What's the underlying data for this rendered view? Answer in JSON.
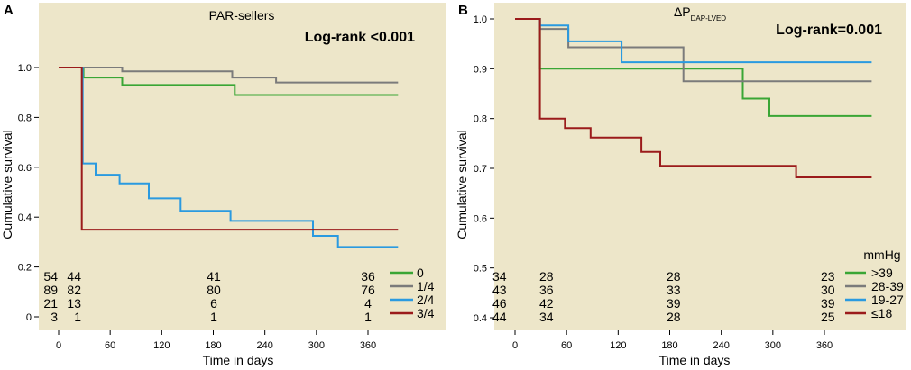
{
  "chart_data": [
    {
      "type": "line",
      "panel": "A",
      "title": "PAR-sellers",
      "stat_text": "Log-rank <0.001",
      "xlabel": "Time in days",
      "ylabel": "Cumulative survival",
      "xlim": [
        0,
        400
      ],
      "ylim": [
        0,
        1.05
      ],
      "xticks": [
        "0",
        "60",
        "120",
        "180",
        "240",
        "300",
        "360"
      ],
      "xtick_values": [
        0,
        60,
        120,
        180,
        240,
        300,
        360
      ],
      "yticks": [
        "0",
        "0.2",
        "0.4",
        "0.6",
        "0.8",
        "1.0"
      ],
      "ytick_values": [
        0,
        0.2,
        0.4,
        0.6,
        0.8,
        1.0
      ],
      "series": [
        {
          "name": "0",
          "color": "#3aa635",
          "points": [
            [
              0,
              1.0
            ],
            [
              29,
              1.0
            ],
            [
              29,
              0.96
            ],
            [
              74,
              0.96
            ],
            [
              74,
              0.93
            ],
            [
              205,
              0.93
            ],
            [
              205,
              0.89
            ],
            [
              395,
              0.89
            ]
          ]
        },
        {
          "name": "1/4",
          "color": "#7b7b7b",
          "points": [
            [
              0,
              1.0
            ],
            [
              74,
              1.0
            ],
            [
              74,
              0.985
            ],
            [
              202,
              0.985
            ],
            [
              202,
              0.96
            ],
            [
              253,
              0.96
            ],
            [
              253,
              0.94
            ],
            [
              395,
              0.94
            ]
          ]
        },
        {
          "name": "2/4",
          "color": "#2a9ae0",
          "points": [
            [
              0,
              1.0
            ],
            [
              28,
              1.0
            ],
            [
              28,
              0.615
            ],
            [
              43,
              0.615
            ],
            [
              43,
              0.57
            ],
            [
              71,
              0.57
            ],
            [
              71,
              0.535
            ],
            [
              105,
              0.535
            ],
            [
              105,
              0.475
            ],
            [
              142,
              0.475
            ],
            [
              142,
              0.425
            ],
            [
              200,
              0.425
            ],
            [
              200,
              0.385
            ],
            [
              296,
              0.385
            ],
            [
              296,
              0.325
            ],
            [
              325,
              0.325
            ],
            [
              325,
              0.28
            ],
            [
              395,
              0.28
            ]
          ]
        },
        {
          "name": "3/4",
          "color": "#9b1b1b",
          "points": [
            [
              0,
              1.0
            ],
            [
              27,
              1.0
            ],
            [
              27,
              0.35
            ],
            [
              395,
              0.35
            ]
          ]
        }
      ],
      "risk_table": {
        "timepoints": [
          0,
          30,
          180,
          360
        ],
        "rows": [
          [
            "54",
            "44",
            "41",
            "36"
          ],
          [
            "89",
            "82",
            "80",
            "76"
          ],
          [
            "21",
            "13",
            "6",
            "4"
          ],
          [
            "3",
            "1",
            "1",
            "1"
          ]
        ]
      },
      "legend": {
        "title": "",
        "entries": [
          "0",
          "1/4",
          "2/4",
          "3/4"
        ]
      }
    },
    {
      "type": "line",
      "panel": "B",
      "title_main": "ΔP",
      "title_sub": "DAP-LVED",
      "stat_text": "Log-rank=0.001",
      "xlabel": "Time in days",
      "ylabel": "Cumulative survival",
      "xlim": [
        0,
        400
      ],
      "ylim": [
        0.37,
        1.02
      ],
      "xticks": [
        "0",
        "60",
        "120",
        "180",
        "240",
        "300",
        "360"
      ],
      "xtick_values": [
        0,
        60,
        120,
        180,
        240,
        300,
        360
      ],
      "yticks": [
        "0.4",
        "0.5",
        "0.6",
        "0.7",
        "0.8",
        "0.9",
        "1.0"
      ],
      "ytick_values": [
        0.4,
        0.5,
        0.6,
        0.7,
        0.8,
        0.9,
        1.0
      ],
      "series": [
        {
          "name": ">39",
          "color": "#3aa635",
          "points": [
            [
              0,
              1.0
            ],
            [
              29,
              1.0
            ],
            [
              29,
              0.9
            ],
            [
              265,
              0.9
            ],
            [
              265,
              0.84
            ],
            [
              296,
              0.84
            ],
            [
              296,
              0.805
            ],
            [
              415,
              0.805
            ]
          ]
        },
        {
          "name": "28-39",
          "color": "#7b7b7b",
          "points": [
            [
              0,
              1.0
            ],
            [
              29,
              1.0
            ],
            [
              29,
              0.98
            ],
            [
              62,
              0.98
            ],
            [
              62,
              0.943
            ],
            [
              196,
              0.943
            ],
            [
              196,
              0.875
            ],
            [
              415,
              0.875
            ]
          ]
        },
        {
          "name": "19-27",
          "color": "#2a9ae0",
          "points": [
            [
              0,
              1.0
            ],
            [
              29,
              1.0
            ],
            [
              29,
              0.987
            ],
            [
              62,
              0.987
            ],
            [
              62,
              0.955
            ],
            [
              124,
              0.955
            ],
            [
              124,
              0.913
            ],
            [
              415,
              0.913
            ]
          ]
        },
        {
          "name": "≤18",
          "color": "#9b1b1b",
          "points": [
            [
              0,
              1.0
            ],
            [
              29,
              1.0
            ],
            [
              29,
              0.8
            ],
            [
              58,
              0.8
            ],
            [
              58,
              0.781
            ],
            [
              88,
              0.781
            ],
            [
              88,
              0.762
            ],
            [
              147,
              0.762
            ],
            [
              147,
              0.733
            ],
            [
              169,
              0.733
            ],
            [
              169,
              0.705
            ],
            [
              327,
              0.705
            ],
            [
              327,
              0.682
            ],
            [
              415,
              0.682
            ]
          ]
        }
      ],
      "risk_table": {
        "timepoints": [
          0,
          30,
          180,
          360
        ],
        "rows": [
          [
            "34",
            "28",
            "28",
            "23"
          ],
          [
            "43",
            "36",
            "33",
            "30"
          ],
          [
            "46",
            "42",
            "39",
            "39"
          ],
          [
            "44",
            "34",
            "28",
            "25"
          ]
        ]
      },
      "legend": {
        "title": "mmHg",
        "entries": [
          ">39",
          "28-39",
          "19-27",
          "≤18"
        ]
      }
    }
  ]
}
